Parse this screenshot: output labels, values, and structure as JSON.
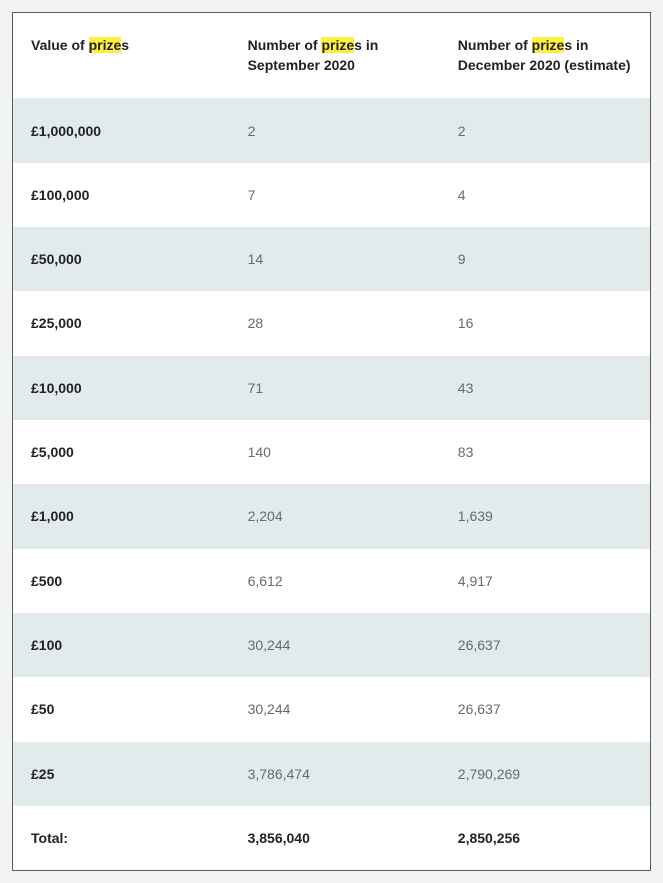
{
  "highlight_word": "prize",
  "highlight_background": "#ffef3e",
  "table": {
    "stripe_colors": [
      "#e1ebec",
      "#ffffff"
    ],
    "border_color": "#5a5a5a",
    "header_text_color": "#222222",
    "body_label_color": "#222222",
    "body_value_color": "#6a6a6a",
    "headers": [
      "Value of prizes",
      "Number of prizes in September 2020",
      "Number of prizes in December 2020 (estimate)"
    ],
    "rows": [
      {
        "label": "£1,000,000",
        "sep": "2",
        "dec": "2"
      },
      {
        "label": "£100,000",
        "sep": "7",
        "dec": "4"
      },
      {
        "label": "£50,000",
        "sep": "14",
        "dec": "9"
      },
      {
        "label": "£25,000",
        "sep": "28",
        "dec": "16"
      },
      {
        "label": "£10,000",
        "sep": "71",
        "dec": "43"
      },
      {
        "label": "£5,000",
        "sep": "140",
        "dec": "83"
      },
      {
        "label": "£1,000",
        "sep": "2,204",
        "dec": "1,639"
      },
      {
        "label": "£500",
        "sep": "6,612",
        "dec": "4,917"
      },
      {
        "label": "£100",
        "sep": "30,244",
        "dec": "26,637"
      },
      {
        "label": "£50",
        "sep": "30,244",
        "dec": "26,637"
      },
      {
        "label": "£25",
        "sep": "3,786,474",
        "dec": "2,790,269"
      }
    ],
    "total": {
      "label": "Total:",
      "sep": "3,856,040",
      "dec": "2,850,256"
    }
  }
}
